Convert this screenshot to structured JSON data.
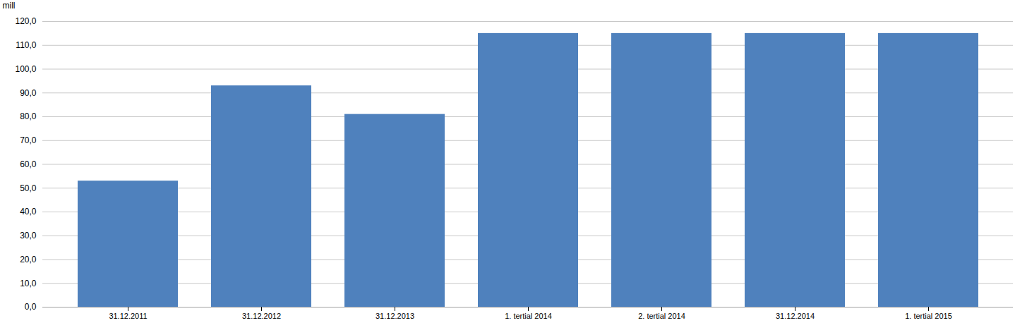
{
  "chart_data": {
    "type": "bar",
    "categories": [
      "31.12.2011",
      "31.12.2012",
      "31.12.2013",
      "1. tertial 2014",
      "2. tertial 2014",
      "31.12.2014",
      "1. tertial 2015"
    ],
    "values": [
      53.0,
      93.0,
      81.0,
      115.0,
      115.0,
      115.0,
      115.0
    ],
    "color": "#4F81BD",
    "ylabel": "mill",
    "ylim": [
      0,
      120
    ],
    "yticks": [
      {
        "value": 0,
        "label": "0,0"
      },
      {
        "value": 10,
        "label": "10,0"
      },
      {
        "value": 20,
        "label": "20,0"
      },
      {
        "value": 30,
        "label": "30,0"
      },
      {
        "value": 40,
        "label": "40,0"
      },
      {
        "value": 50,
        "label": "50,0"
      },
      {
        "value": 60,
        "label": "60,0"
      },
      {
        "value": 70,
        "label": "70,0"
      },
      {
        "value": 80,
        "label": "80,0"
      },
      {
        "value": 90,
        "label": "90,0"
      },
      {
        "value": 100,
        "label": "100,0"
      },
      {
        "value": 110,
        "label": "110,0"
      },
      {
        "value": 120,
        "label": "120,0"
      }
    ],
    "grid": true
  }
}
